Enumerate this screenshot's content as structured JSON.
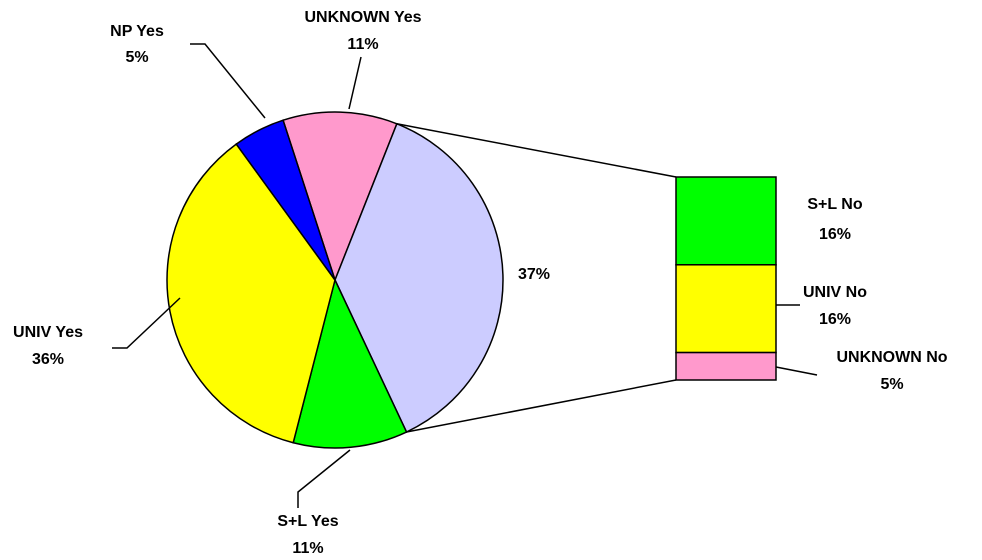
{
  "chart_data": {
    "type": "pie",
    "categories": [
      "UNKNOWN Yes",
      null,
      "S+L Yes",
      "UNIV Yes",
      "NP Yes"
    ],
    "values": [
      11,
      37,
      11,
      36,
      5
    ],
    "value_labels": [
      "11%",
      "37%",
      "11%",
      "36%",
      "5%"
    ],
    "colors": [
      "#ff99cc",
      "#ccccff",
      "#00ff00",
      "#ffff00",
      "#0000ff"
    ],
    "breakdown": {
      "categories": [
        "S+L No",
        "UNIV No",
        "UNKNOWN No"
      ],
      "values": [
        16,
        16,
        5
      ],
      "value_labels": [
        "16%",
        "16%",
        "5%"
      ],
      "colors": [
        "#00ff00",
        "#ffff00",
        "#ff99cc"
      ]
    }
  }
}
